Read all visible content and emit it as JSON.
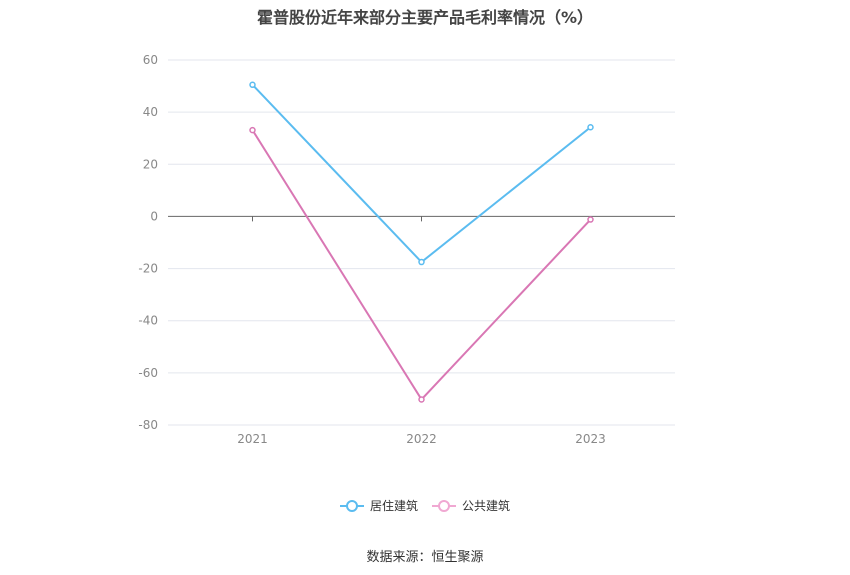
{
  "chart_data": {
    "type": "line",
    "title": "霍普股份近年来部分主要产品毛利率情况（%）",
    "categories": [
      "2021",
      "2022",
      "2023"
    ],
    "series": [
      {
        "name": "居住建筑",
        "values": [
          50.5,
          -17.5,
          34.2
        ],
        "color": "#5bbcf0"
      },
      {
        "name": "公共建筑",
        "values": [
          33.1,
          -70.2,
          -1.2
        ],
        "color": "#d977b4"
      }
    ],
    "ylim": [
      -80,
      60
    ],
    "yticks": [
      60,
      40,
      20,
      0,
      -20,
      -40,
      -60,
      -80
    ],
    "grid": true,
    "legend": "bottom"
  },
  "source": "数据来源：恒生聚源"
}
